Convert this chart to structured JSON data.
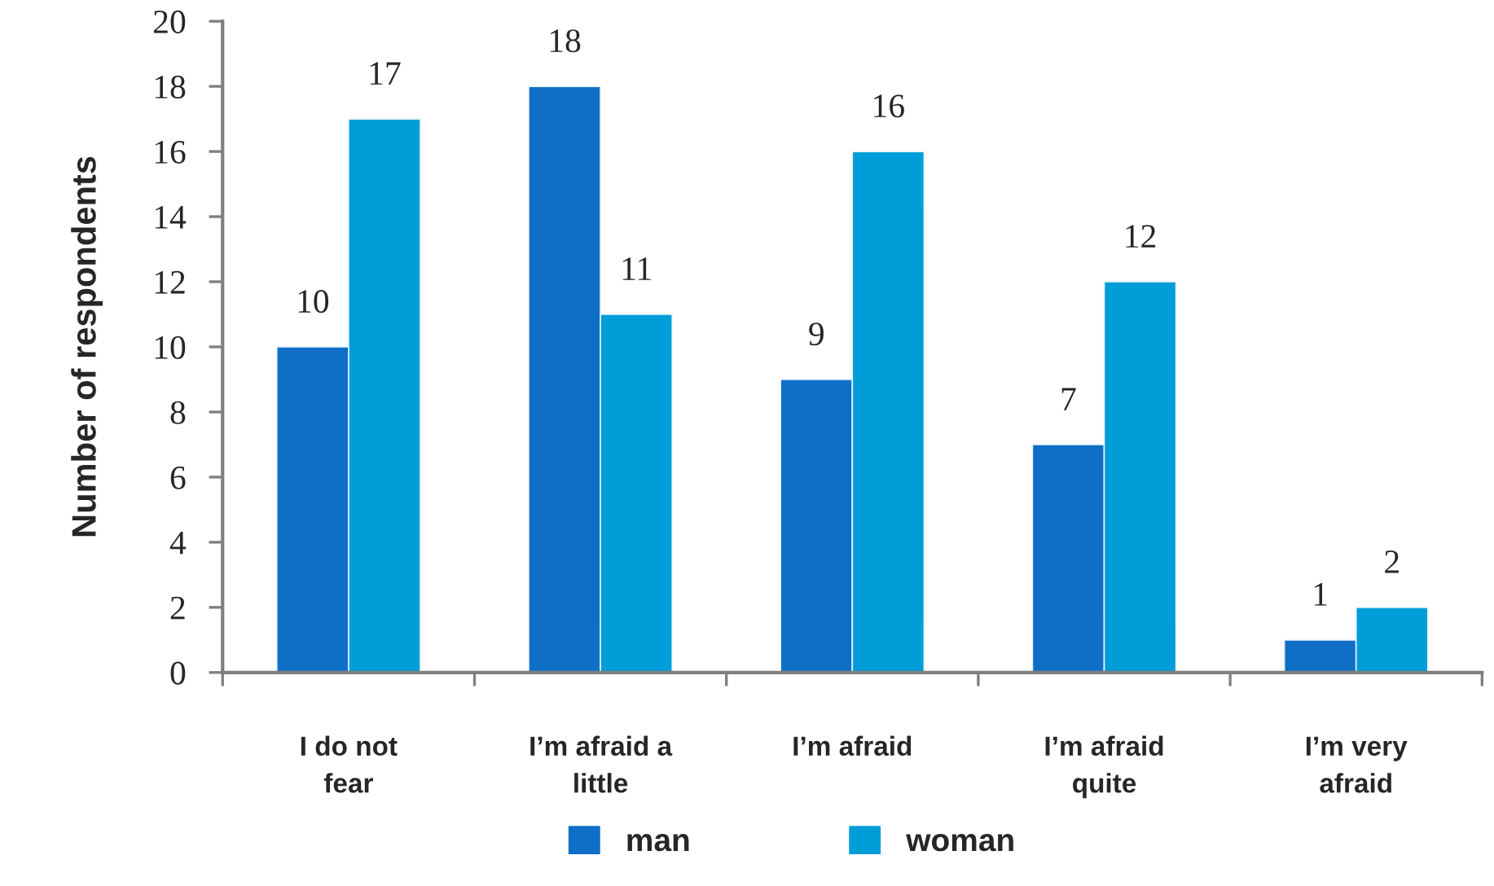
{
  "chart_data": {
    "type": "bar",
    "ylabel": "Number of respondents",
    "categories": [
      "I do not\nfear",
      "I’m afraid a\nlittle",
      "I’m afraid",
      "I’m afraid\nquite",
      "I’m very\nafraid"
    ],
    "series": [
      {
        "name": "man",
        "color": "#0f6fc6",
        "values": [
          10,
          18,
          9,
          7,
          1
        ]
      },
      {
        "name": "woman",
        "color": "#009dd9",
        "values": [
          17,
          11,
          16,
          12,
          2
        ]
      }
    ],
    "ylim": [
      0,
      20
    ],
    "yticks": [
      0,
      2,
      4,
      6,
      8,
      10,
      12,
      14,
      16,
      18,
      20
    ],
    "grid": false,
    "legend": "bottom",
    "data_labels": true
  }
}
